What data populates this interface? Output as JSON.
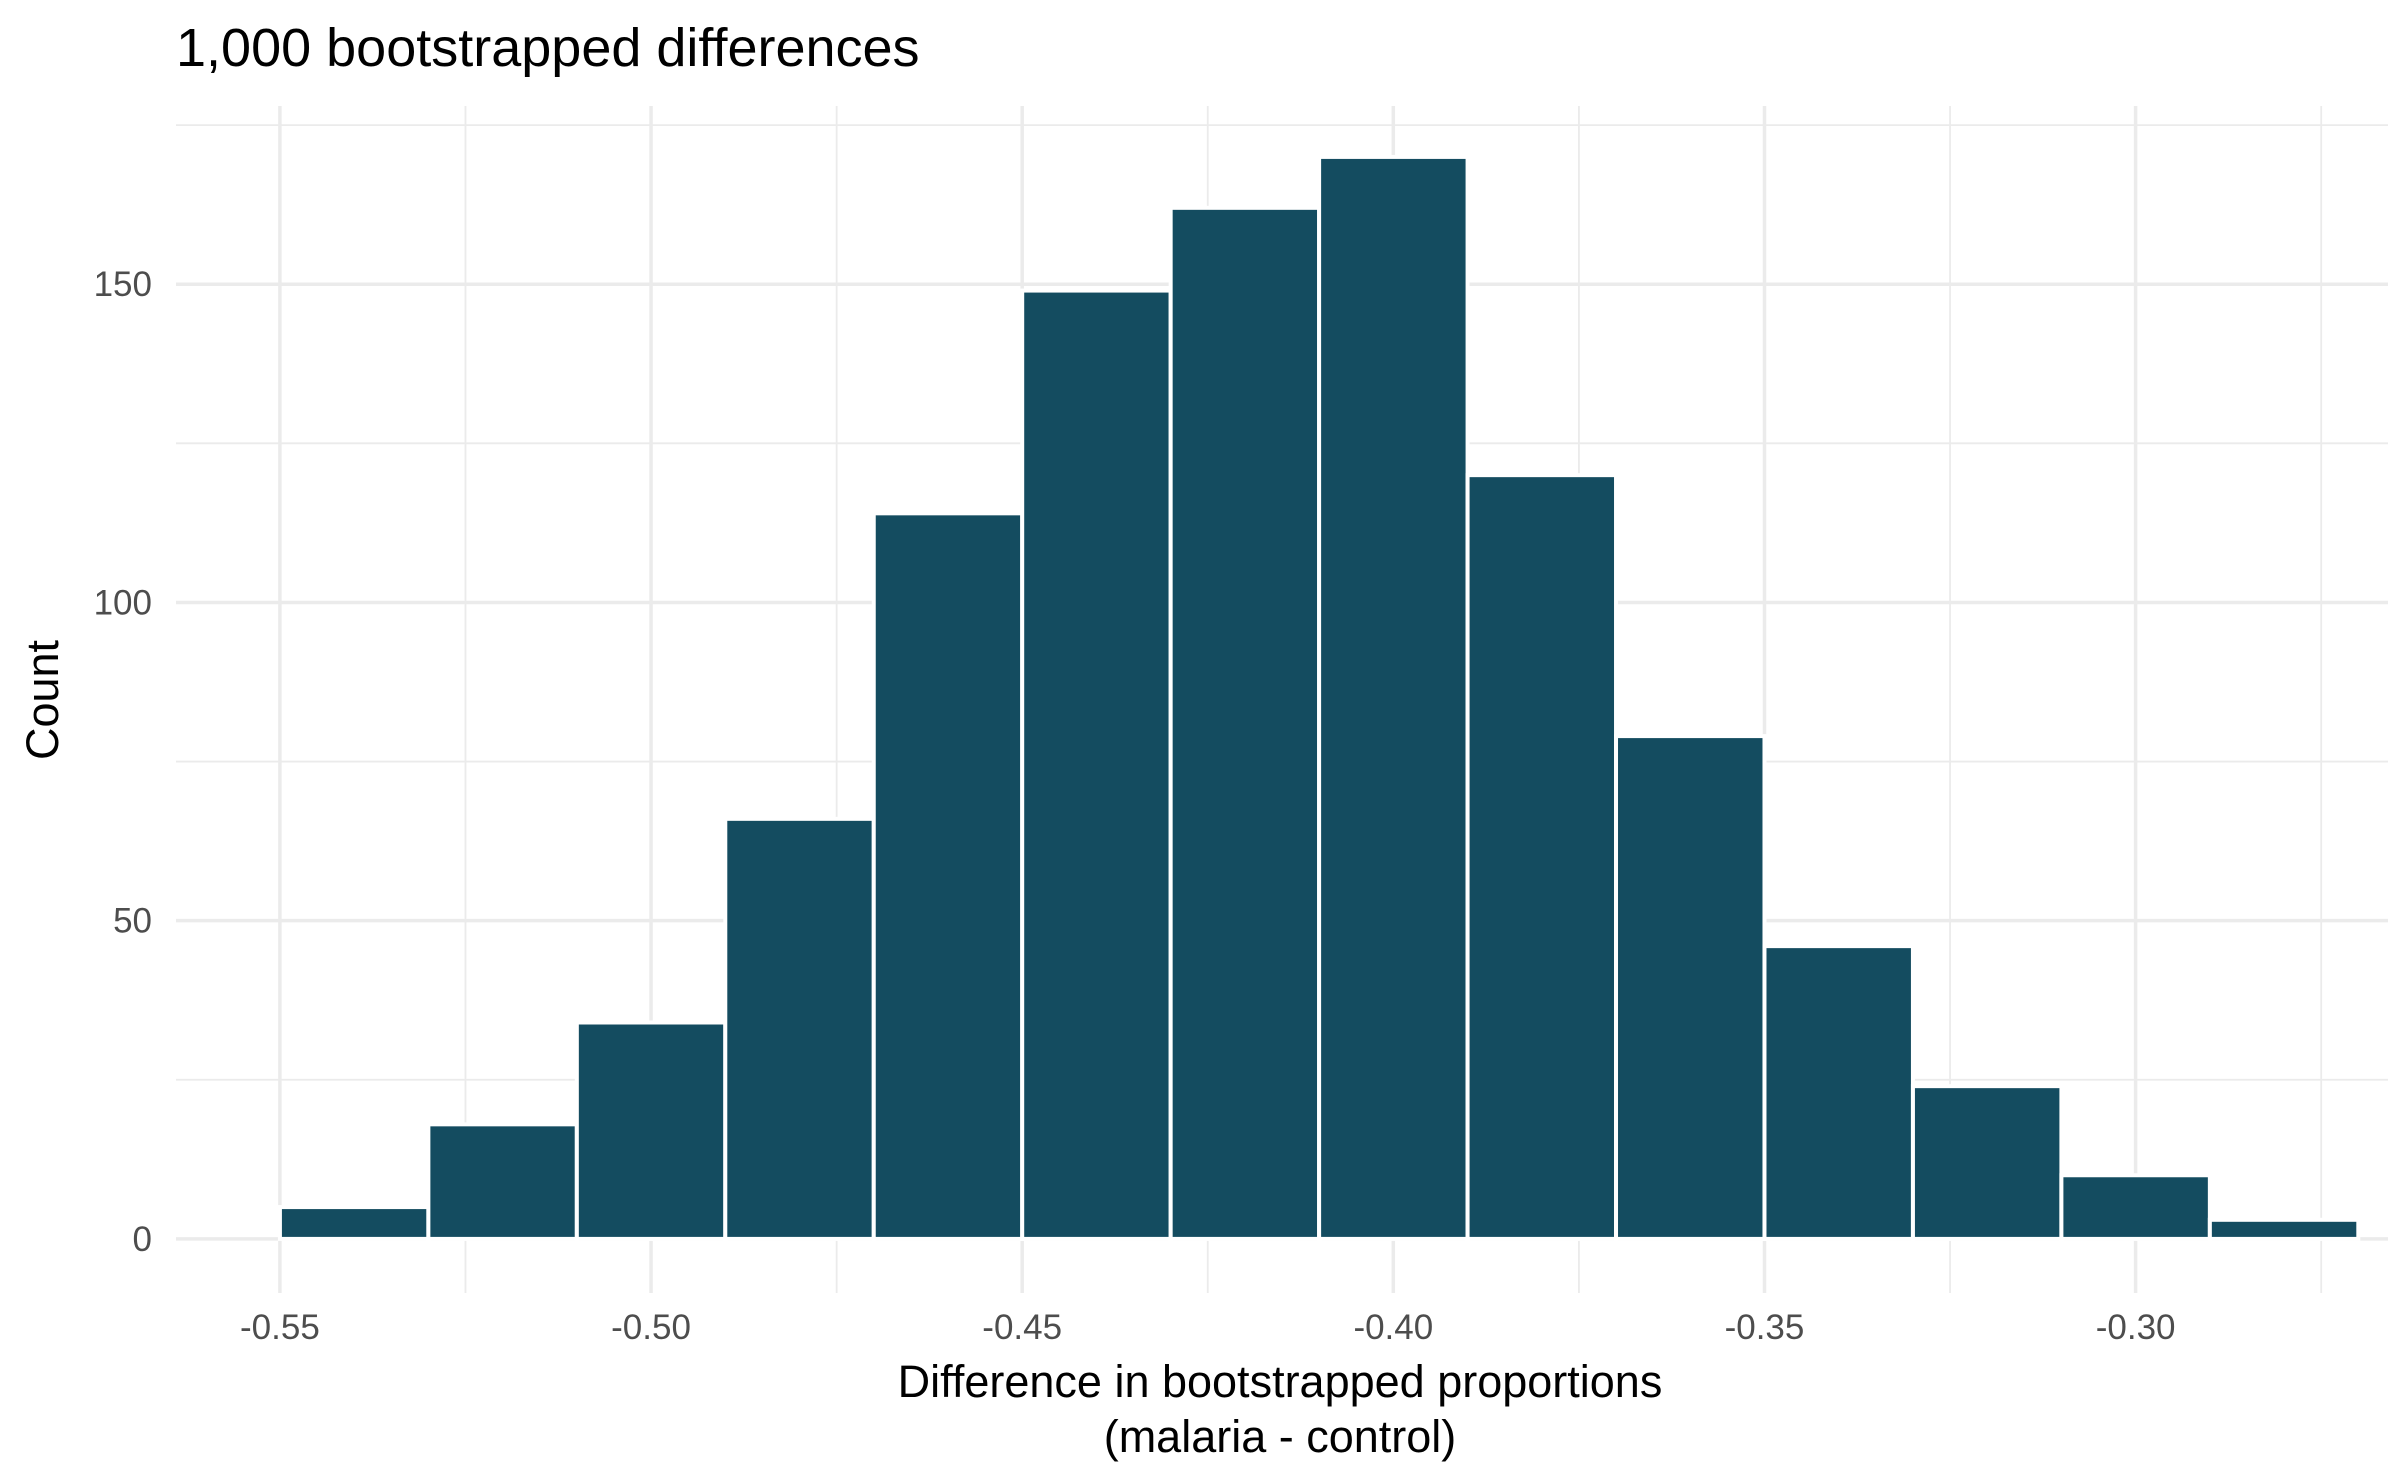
{
  "chart_data": {
    "type": "bar",
    "title": "1,000 bootstrapped differences",
    "xlabel_line1": "Difference in bootstrapped proportions",
    "xlabel_line2": "(malaria - control)",
    "ylabel": "Count",
    "xlim": [
      -0.564,
      -0.266
    ],
    "ylim": [
      -8.5,
      178
    ],
    "bin_width": 0.02,
    "bins": [
      {
        "x0": -0.55,
        "x1": -0.53,
        "count": 5
      },
      {
        "x0": -0.53,
        "x1": -0.51,
        "count": 18
      },
      {
        "x0": -0.51,
        "x1": -0.49,
        "count": 34
      },
      {
        "x0": -0.49,
        "x1": -0.47,
        "count": 66
      },
      {
        "x0": -0.47,
        "x1": -0.45,
        "count": 114
      },
      {
        "x0": -0.45,
        "x1": -0.43,
        "count": 149
      },
      {
        "x0": -0.43,
        "x1": -0.41,
        "count": 162
      },
      {
        "x0": -0.41,
        "x1": -0.39,
        "count": 170
      },
      {
        "x0": -0.39,
        "x1": -0.37,
        "count": 120
      },
      {
        "x0": -0.37,
        "x1": -0.35,
        "count": 79
      },
      {
        "x0": -0.35,
        "x1": -0.33,
        "count": 46
      },
      {
        "x0": -0.33,
        "x1": -0.31,
        "count": 24
      },
      {
        "x0": -0.31,
        "x1": -0.29,
        "count": 10
      },
      {
        "x0": -0.29,
        "x1": -0.27,
        "count": 3
      }
    ],
    "x_ticks": [
      -0.55,
      -0.5,
      -0.45,
      -0.4,
      -0.35,
      -0.3
    ],
    "x_tick_labels": [
      "-0.55",
      "-0.50",
      "-0.45",
      "-0.40",
      "-0.35",
      "-0.30"
    ],
    "x_minor_ticks": [
      -0.525,
      -0.475,
      -0.425,
      -0.375,
      -0.325,
      -0.275
    ],
    "y_ticks": [
      0,
      50,
      100,
      150
    ],
    "y_tick_labels": [
      "0",
      "50",
      "100",
      "150"
    ],
    "y_minor_ticks": [
      25,
      75,
      125,
      175
    ],
    "grid": true,
    "legend": "none",
    "colors": {
      "bar_fill": "#144c60",
      "bar_outline": "#ffffff",
      "grid": "#ebebeb",
      "background": "#ffffff"
    }
  }
}
